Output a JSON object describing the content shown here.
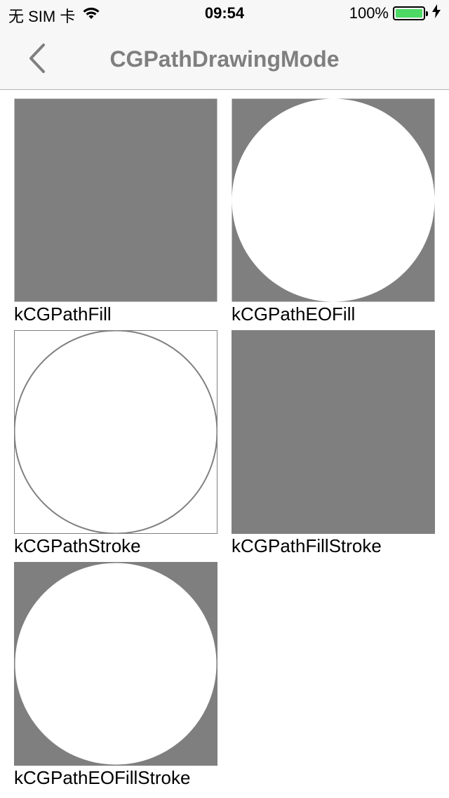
{
  "status_bar": {
    "carrier": "无 SIM 卡",
    "time": "09:54",
    "battery_percent": "100%",
    "battery_level": 1.0,
    "icons": [
      "wifi-icon",
      "battery-icon",
      "charging-bolt-icon"
    ]
  },
  "nav": {
    "title": "CGPathDrawingMode",
    "back_icon": "chevron-left-icon"
  },
  "colors": {
    "fill_gray": "#7f7f7f",
    "white": "#ffffff",
    "battery_green": "#4cd964",
    "title_gray": "#7f7f7f"
  },
  "samples": [
    {
      "label": "kCGPathFill",
      "mode": "fill"
    },
    {
      "label": "kCGPathEOFill",
      "mode": "eofill"
    },
    {
      "label": "kCGPathStroke",
      "mode": "stroke"
    },
    {
      "label": "kCGPathFillStroke",
      "mode": "fillstroke"
    },
    {
      "label": "kCGPathEOFillStroke",
      "mode": "eofillstroke"
    }
  ]
}
